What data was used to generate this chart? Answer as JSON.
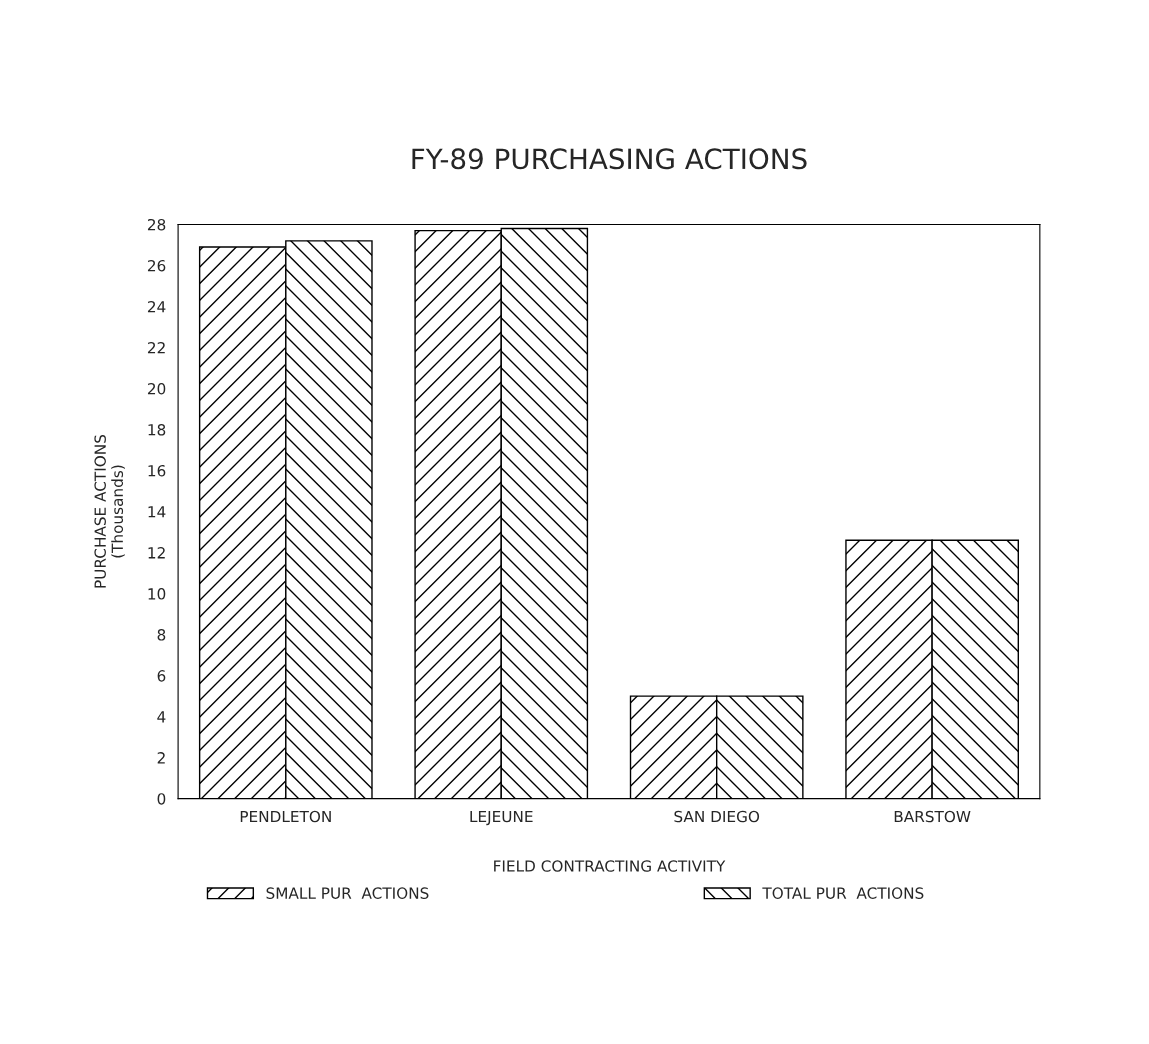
{
  "chart_data": {
    "type": "bar",
    "title": "FY-89 PURCHASING ACTIONS",
    "xlabel": "FIELD CONTRACTING ACTIVITY",
    "ylabel": "PURCHASE ACTIONS\n(Thousands)",
    "categories": [
      "PENDLETON",
      "LEJEUNE",
      "SAN DIEGO",
      "BARSTOW"
    ],
    "series": [
      {
        "name": "SMALL PUR  ACTIONS",
        "color": "#000000",
        "values": [
          26.9,
          27.7,
          5.0,
          12.6
        ]
      },
      {
        "name": "TOTAL PUR  ACTIONS",
        "color": "#000000",
        "values": [
          27.2,
          27.8,
          5.0,
          12.6
        ]
      }
    ],
    "ylim": [
      0,
      28
    ],
    "yticks": [
      0,
      2,
      4,
      6,
      8,
      10,
      12,
      14,
      16,
      18,
      20,
      22,
      24,
      26,
      28
    ],
    "grid": false,
    "legend": "bottom"
  }
}
